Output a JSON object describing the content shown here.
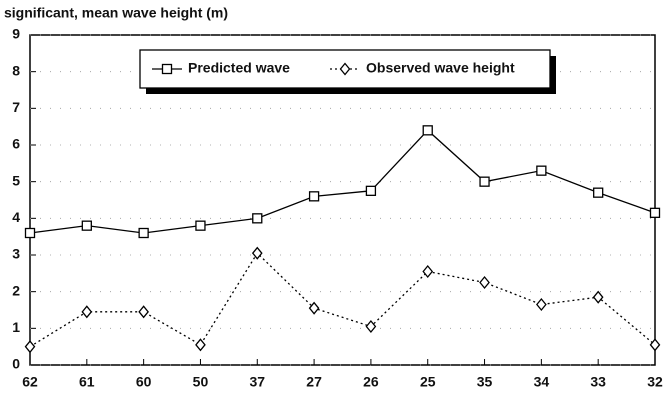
{
  "chart_data": {
    "type": "line",
    "title": "significant, mean wave height (m)",
    "categories": [
      "62",
      "61",
      "60",
      "50",
      "37",
      "27",
      "26",
      "25",
      "35",
      "34",
      "33",
      "32"
    ],
    "series": [
      {
        "name": "Predicted wave",
        "color": "#000000",
        "dash": "solid",
        "marker": "square",
        "values": [
          3.6,
          3.8,
          3.6,
          3.8,
          4.0,
          4.6,
          4.75,
          6.4,
          5.0,
          5.3,
          4.7,
          4.15
        ]
      },
      {
        "name": "Observed wave height",
        "color": "#000000",
        "dash": "dotted",
        "marker": "diamond",
        "values": [
          0.5,
          1.45,
          1.45,
          0.55,
          3.05,
          1.55,
          1.05,
          2.55,
          2.25,
          1.65,
          1.85,
          0.55
        ]
      }
    ],
    "ylim": [
      0,
      9
    ],
    "yticks": [
      0,
      1,
      2,
      3,
      4,
      5,
      6,
      7,
      8,
      9
    ],
    "grid": true,
    "legend": "top"
  }
}
